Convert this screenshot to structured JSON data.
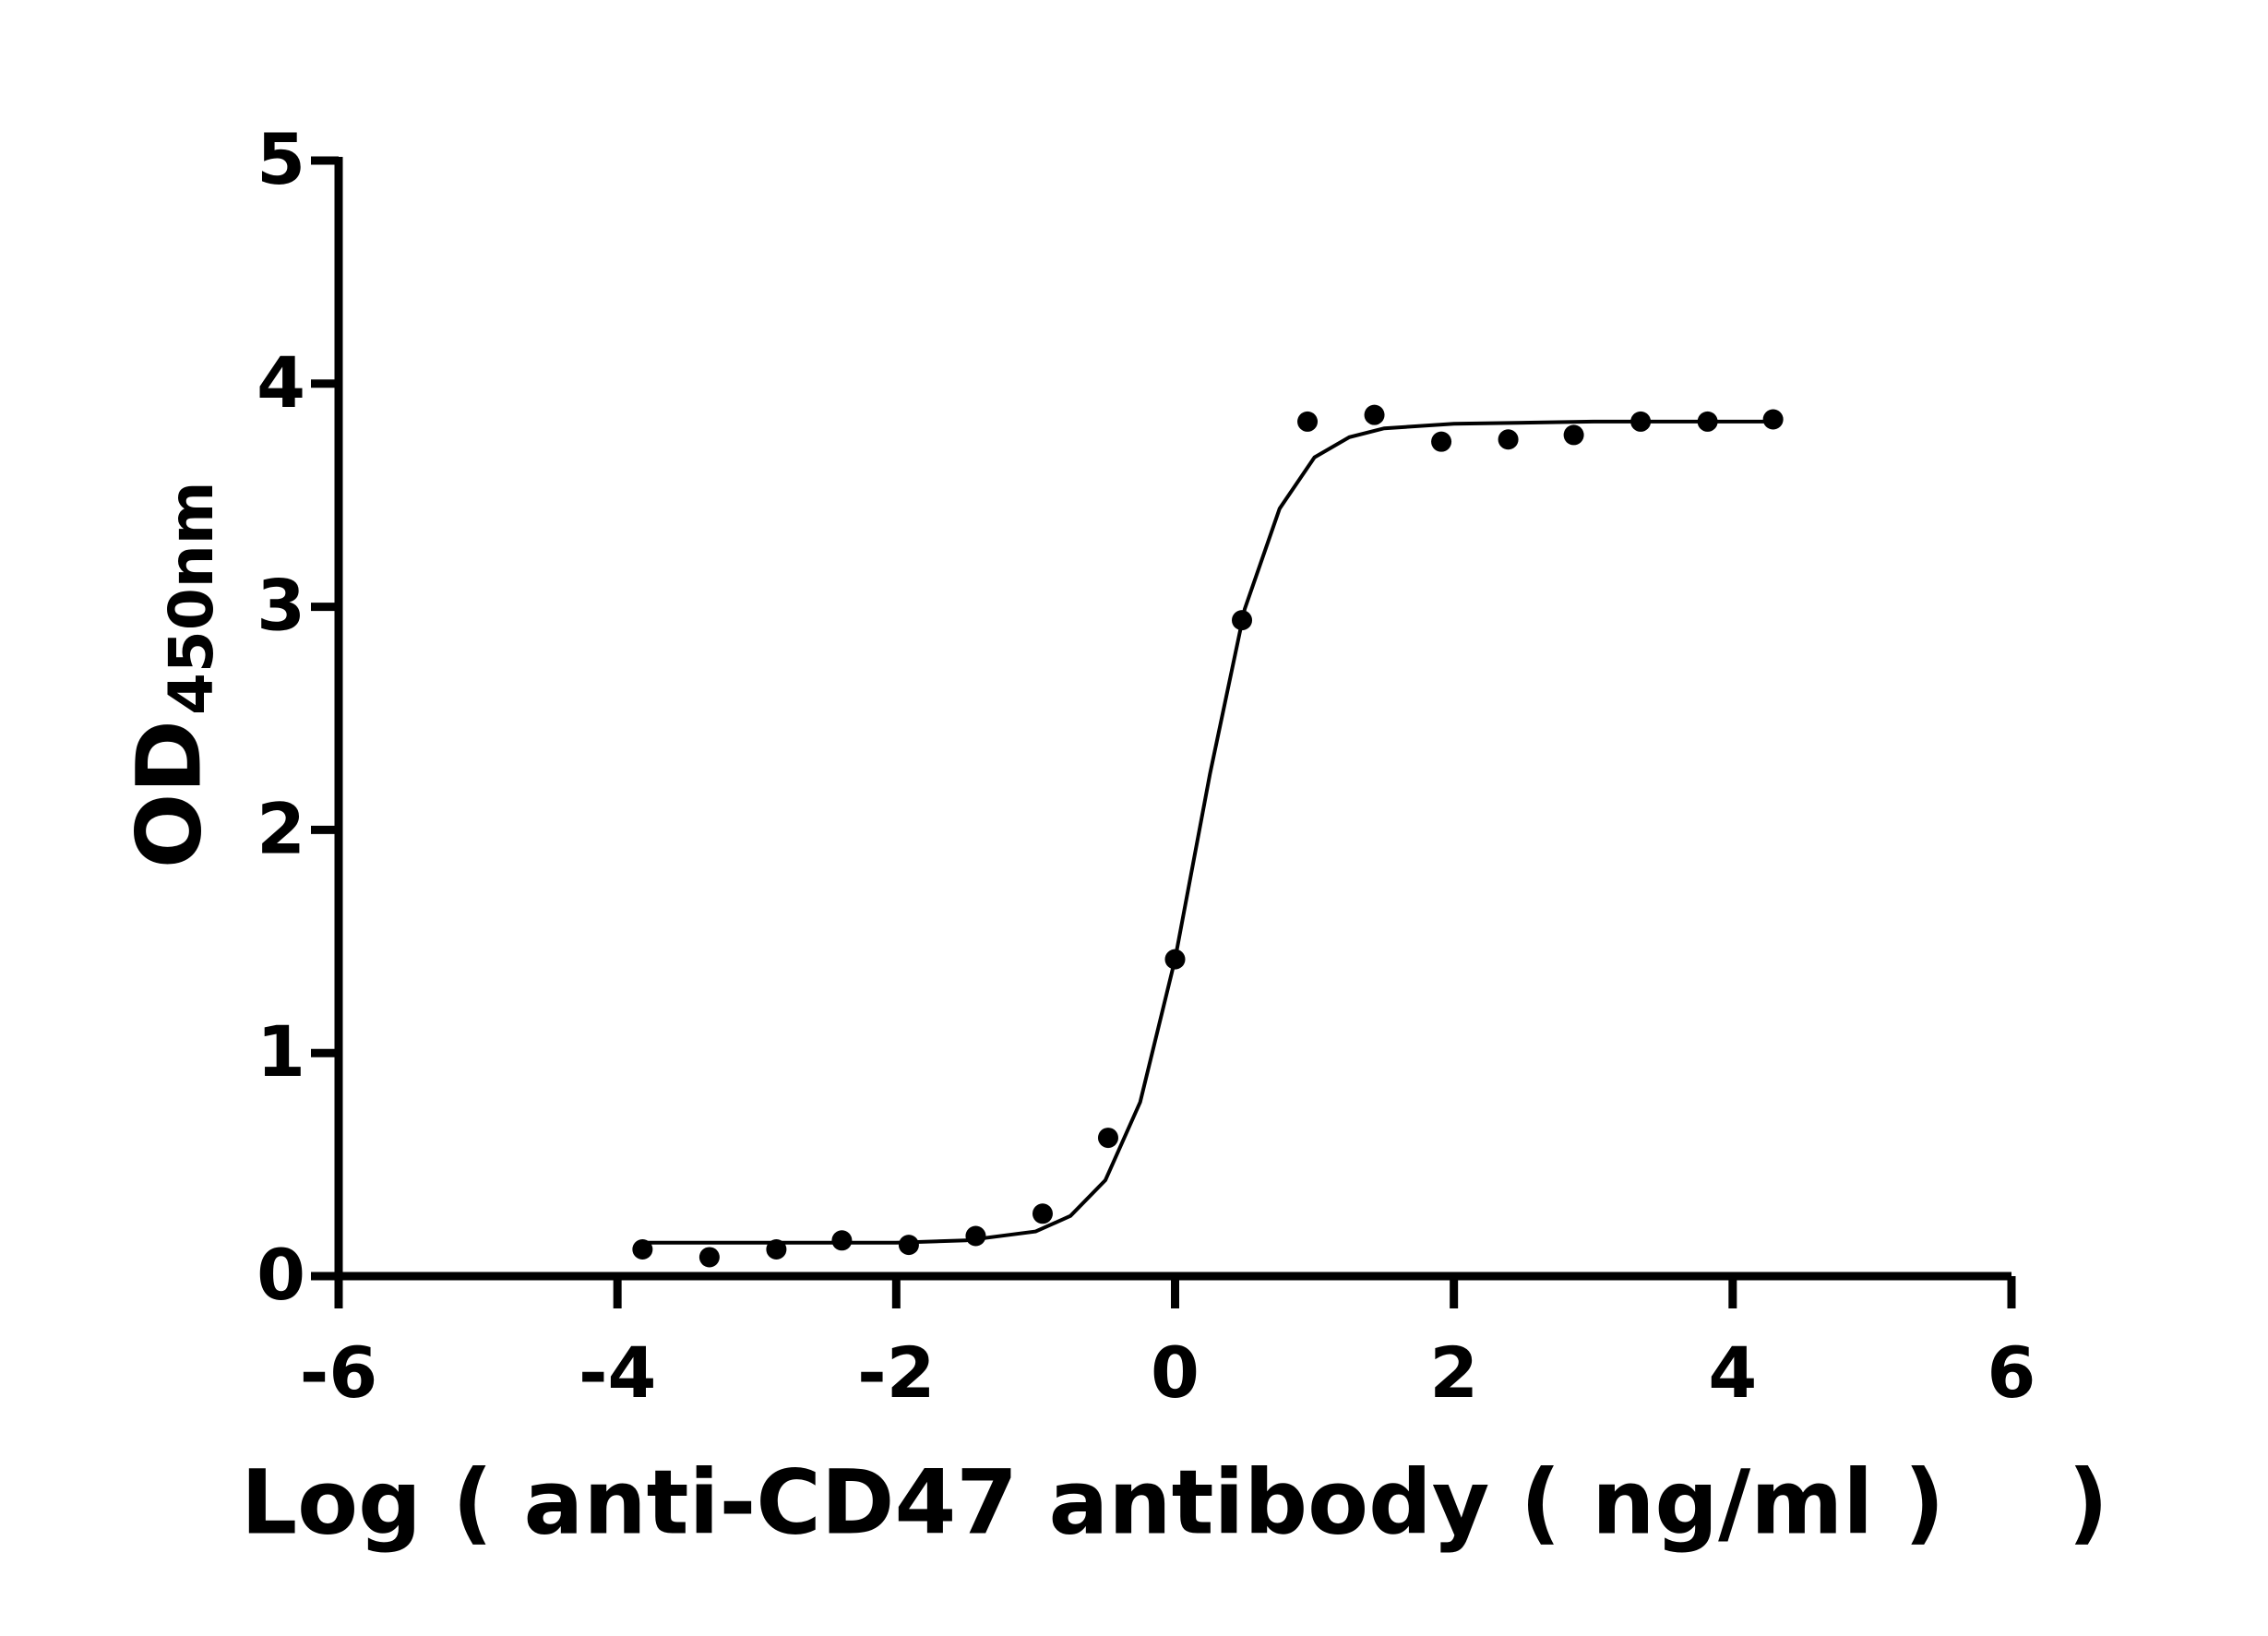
{
  "chart_data": {
    "type": "scatter",
    "xlabel": "Log ( anti-CD47 antibody ( ng/ml )    )",
    "ylabel": "OD",
    "ylabel_sub": "450nm",
    "x": [
      -3.82,
      -3.34,
      -2.86,
      -2.39,
      -1.91,
      -1.43,
      -0.95,
      -0.48,
      0,
      0.48,
      0.95,
      1.43,
      1.91,
      2.39,
      2.86,
      3.34,
      3.82,
      4.29
    ],
    "values": [
      0.12,
      0.085,
      0.12,
      0.16,
      0.14,
      0.18,
      0.28,
      0.62,
      1.42,
      2.94,
      3.83,
      3.86,
      3.74,
      3.75,
      3.77,
      3.83,
      3.83,
      3.84
    ],
    "color": "#000000",
    "fit": {
      "x": [
        -3.82,
        -3,
        -2,
        -1.5,
        -1,
        -0.75,
        -0.5,
        -0.25,
        0,
        0.25,
        0.5,
        0.75,
        1,
        1.25,
        1.5,
        2,
        3,
        4.29
      ],
      "y": [
        0.15,
        0.15,
        0.15,
        0.16,
        0.2,
        0.27,
        0.43,
        0.78,
        1.42,
        2.25,
        2.99,
        3.44,
        3.67,
        3.76,
        3.8,
        3.82,
        3.83,
        3.83
      ]
    },
    "xlim": [
      -6,
      6
    ],
    "xticks": [
      -6,
      -4,
      -2,
      0,
      2,
      4,
      6
    ],
    "ylim": [
      0,
      5
    ],
    "yticks": [
      0,
      1,
      2,
      3,
      4,
      5
    ]
  }
}
